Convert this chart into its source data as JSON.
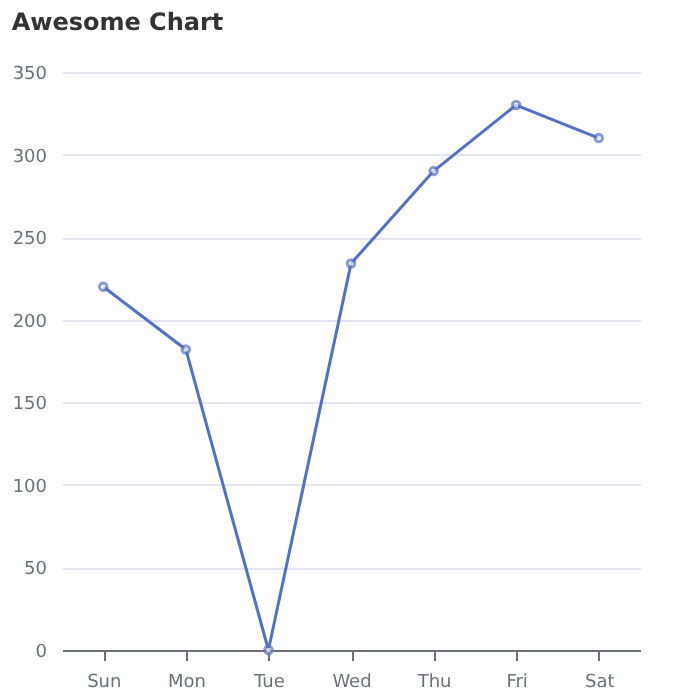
{
  "chart_data": {
    "type": "line",
    "title": "Awesome Chart",
    "categories": [
      "Sun",
      "Mon",
      "Tue",
      "Wed",
      "Thu",
      "Fri",
      "Sat"
    ],
    "series": [
      {
        "color": "#5470c6",
        "values": [
          220,
          182,
          0,
          234,
          290,
          330,
          310
        ]
      }
    ],
    "ylim": [
      0,
      350
    ],
    "yticks": [
      0,
      50,
      100,
      150,
      200,
      250,
      300,
      350
    ],
    "grid": "y",
    "marker": "circle",
    "line_style": "solid",
    "legend": false
  }
}
